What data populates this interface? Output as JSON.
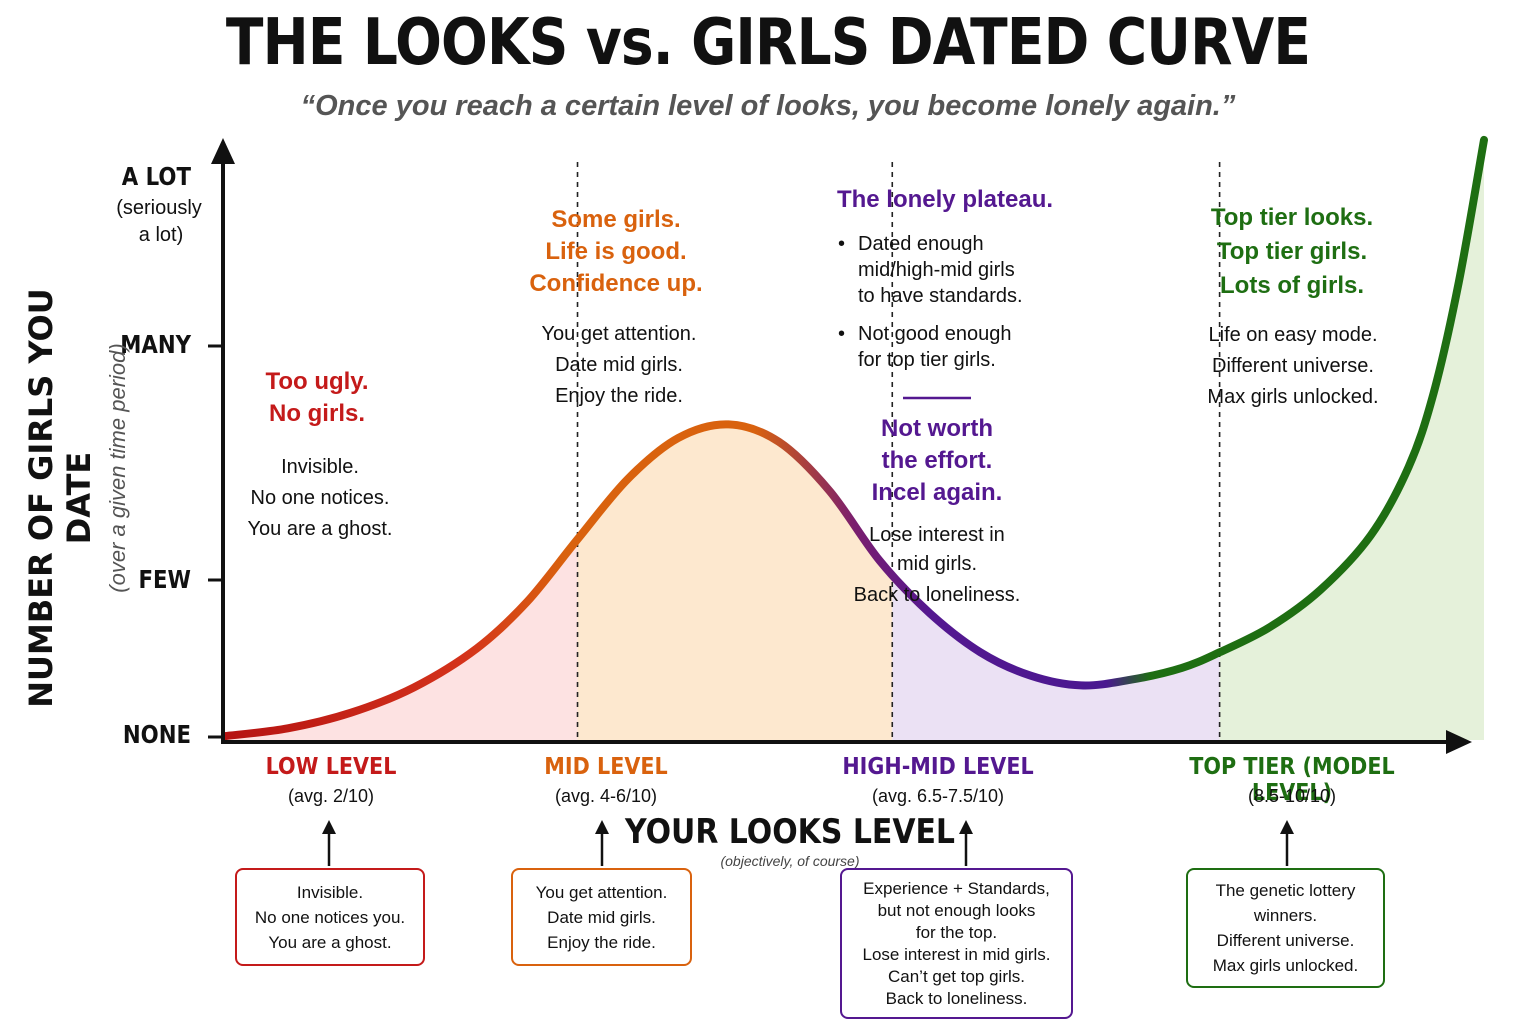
{
  "title": "THE LOOKS vs. GIRLS DATED CURVE",
  "subtitle": "“Once you reach a certain level of looks, you become lonely again.”",
  "colors": {
    "low": "#c41a1a",
    "mid": "#d9620e",
    "highmid": "#541890",
    "top": "#1e6e12"
  },
  "chart_data": {
    "type": "area",
    "title": "THE LOOKS vs. GIRLS DATED CURVE",
    "xlabel": "YOUR LOOKS LEVEL",
    "xlabel_note": "(objectively, of course)",
    "ylabel": "NUMBER OF GIRLS YOU DATE",
    "ylabel_note": "(over a given time period)",
    "yticks": [
      {
        "label": "NONE",
        "value": 0
      },
      {
        "label": "FEW",
        "value": 1
      },
      {
        "label": "MANY",
        "value": 2
      },
      {
        "label": "A LOT",
        "note": "(seriously a lot)",
        "value": 3
      }
    ],
    "ylim": [
      0,
      3.1
    ],
    "xlim": [
      0,
      10
    ],
    "curve": [
      {
        "x": 0,
        "y": 0.02
      },
      {
        "x": 0.5,
        "y": 0.06
      },
      {
        "x": 1.0,
        "y": 0.14
      },
      {
        "x": 1.5,
        "y": 0.27
      },
      {
        "x": 2.0,
        "y": 0.47
      },
      {
        "x": 2.4,
        "y": 0.71
      },
      {
        "x": 2.8,
        "y": 1.03
      },
      {
        "x": 3.2,
        "y": 1.34
      },
      {
        "x": 3.6,
        "y": 1.55
      },
      {
        "x": 4.0,
        "y": 1.62
      },
      {
        "x": 4.4,
        "y": 1.53
      },
      {
        "x": 4.8,
        "y": 1.28
      },
      {
        "x": 5.2,
        "y": 0.92
      },
      {
        "x": 5.6,
        "y": 0.65
      },
      {
        "x": 6.0,
        "y": 0.45
      },
      {
        "x": 6.4,
        "y": 0.33
      },
      {
        "x": 6.8,
        "y": 0.28
      },
      {
        "x": 7.2,
        "y": 0.31
      },
      {
        "x": 7.6,
        "y": 0.37
      },
      {
        "x": 7.9,
        "y": 0.45
      },
      {
        "x": 8.3,
        "y": 0.58
      },
      {
        "x": 8.7,
        "y": 0.77
      },
      {
        "x": 9.1,
        "y": 1.05
      },
      {
        "x": 9.4,
        "y": 1.4
      },
      {
        "x": 9.6,
        "y": 1.78
      },
      {
        "x": 9.8,
        "y": 2.35
      },
      {
        "x": 10.0,
        "y": 3.08
      }
    ],
    "segments": [
      {
        "key": "low",
        "from": 0,
        "to": 2.8,
        "label": "LOW LEVEL",
        "range": "(avg. 2/10)",
        "color": "#c41a1a",
        "fill": "#fde2e2"
      },
      {
        "key": "mid",
        "from": 2.8,
        "to": 5.3,
        "label": "MID LEVEL",
        "range": "(avg. 4-6/10)",
        "color": "#d9620e",
        "fill": "#fde8cf"
      },
      {
        "key": "highmid",
        "from": 5.3,
        "to": 7.9,
        "label": "HIGH-MID LEVEL",
        "range": "(avg. 6.5-7.5/10)",
        "color": "#541890",
        "fill": "#ebe1f4"
      },
      {
        "key": "top",
        "from": 7.9,
        "to": 10,
        "label": "TOP TIER (MODEL LEVEL)",
        "range": "(8.5-10/10)",
        "color": "#1e6e12",
        "fill": "#e5f1da"
      }
    ]
  },
  "yaxis": {
    "title": "NUMBER OF GIRLS YOU DATE",
    "subtitle": "(over a given time period)",
    "alot": "A LOT",
    "alot_note_1": "(seriously",
    "alot_note_2": "a lot)",
    "many": "MANY",
    "few": "FEW",
    "none": "NONE"
  },
  "xaxis": {
    "title": "YOUR LOOKS LEVEL",
    "subtitle": "(objectively, of course)"
  },
  "low": {
    "head_1": "Too ugly.",
    "head_2": "No girls.",
    "body_1": "Invisible.",
    "body_2": "No one notices.",
    "body_3": "You are a ghost.",
    "tier": "LOW LEVEL",
    "range": "(avg. 2/10)",
    "box_1": "Invisible.",
    "box_2": "No one notices you.",
    "box_3": "You are a ghost."
  },
  "mid": {
    "head_1": "Some girls.",
    "head_2": "Life is good.",
    "head_3": "Confidence up.",
    "body_1": "You get attention.",
    "body_2": "Date mid girls.",
    "body_3": "Enjoy the ride.",
    "tier": "MID LEVEL",
    "range": "(avg. 4-6/10)",
    "box_1": "You get attention.",
    "box_2": "Date mid girls.",
    "box_3": "Enjoy the ride."
  },
  "highmid": {
    "head": "The lonely plateau.",
    "bullet_1_a": "Dated enough",
    "bullet_1_b": "mid/high-mid girls",
    "bullet_1_c": "to have standards.",
    "bullet_2_a": "Not good enough",
    "bullet_2_b": "for top tier girls.",
    "head2_1": "Not worth",
    "head2_2": "the effort.",
    "head2_3": "Incel again.",
    "body_1": "Lose interest in",
    "body_2": "mid girls.",
    "body_3": "Back to loneliness.",
    "tier": "HIGH-MID LEVEL",
    "range": "(avg. 6.5-7.5/10)",
    "box_1": "Experience + Standards,",
    "box_2": "but not enough looks",
    "box_3": "for the top.",
    "box_4": "Lose interest in mid girls.",
    "box_5": "Can’t get top girls.",
    "box_6": "Back to loneliness."
  },
  "top": {
    "head_1": "Top tier looks.",
    "head_2": "Top tier girls.",
    "head_3": "Lots of girls.",
    "body_1": "Life on easy mode.",
    "body_2": "Different universe.",
    "body_3": "Max girls unlocked.",
    "tier": "TOP TIER (MODEL LEVEL)",
    "range": "(8.5-10/10)",
    "box_1": "The genetic lottery",
    "box_2": "winners.",
    "box_3": "Different universe.",
    "box_4": "Max girls unlocked."
  }
}
